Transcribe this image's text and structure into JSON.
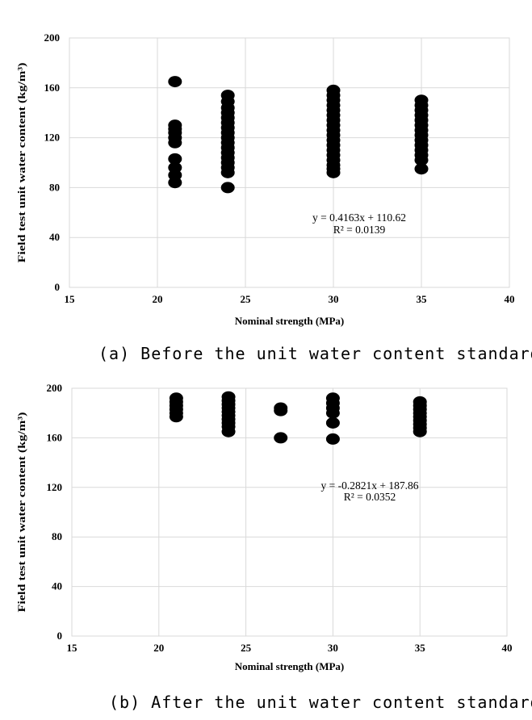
{
  "chart_data": [
    {
      "type": "scatter",
      "caption": "(a) Before the unit water content standard",
      "xlabel": "Nominal strength (MPa)",
      "ylabel": "Field test unit water content (kg/m³)",
      "xlim": [
        15,
        40
      ],
      "ylim": [
        0,
        200
      ],
      "xticks": [
        15,
        20,
        25,
        30,
        35,
        40
      ],
      "yticks": [
        0,
        40,
        80,
        120,
        160,
        200
      ],
      "grid": true,
      "trendline": {
        "equation": "y = 0.4163x + 110.62",
        "r2": "R² = 0.0139"
      },
      "series": [
        {
          "points": [
            [
              21,
              165
            ],
            [
              21,
              130
            ],
            [
              21,
              127
            ],
            [
              21,
              124
            ],
            [
              21,
              120
            ],
            [
              21,
              116
            ],
            [
              21,
              103
            ],
            [
              21,
              96
            ],
            [
              21,
              90
            ],
            [
              21,
              84
            ],
            [
              24,
              154
            ],
            [
              24,
              149
            ],
            [
              24,
              144
            ],
            [
              24,
              140
            ],
            [
              24,
              136
            ],
            [
              24,
              132
            ],
            [
              24,
              128
            ],
            [
              24,
              124
            ],
            [
              24,
              120
            ],
            [
              24,
              116
            ],
            [
              24,
              112
            ],
            [
              24,
              108
            ],
            [
              24,
              104
            ],
            [
              24,
              100
            ],
            [
              24,
              96
            ],
            [
              24,
              92
            ],
            [
              24,
              80
            ],
            [
              30,
              158
            ],
            [
              30,
              154
            ],
            [
              30,
              150
            ],
            [
              30,
              146
            ],
            [
              30,
              142
            ],
            [
              30,
              138
            ],
            [
              30,
              134
            ],
            [
              30,
              130
            ],
            [
              30,
              126
            ],
            [
              30,
              122
            ],
            [
              30,
              118
            ],
            [
              30,
              114
            ],
            [
              30,
              110
            ],
            [
              30,
              106
            ],
            [
              30,
              102
            ],
            [
              30,
              98
            ],
            [
              30,
              95
            ],
            [
              30,
              92
            ],
            [
              35,
              150
            ],
            [
              35,
              146
            ],
            [
              35,
              142
            ],
            [
              35,
              138
            ],
            [
              35,
              134
            ],
            [
              35,
              130
            ],
            [
              35,
              126
            ],
            [
              35,
              122
            ],
            [
              35,
              118
            ],
            [
              35,
              114
            ],
            [
              35,
              110
            ],
            [
              35,
              106
            ],
            [
              35,
              102
            ],
            [
              35,
              95
            ]
          ]
        }
      ]
    },
    {
      "type": "scatter",
      "caption": "(b) After the unit water content standard",
      "xlabel": "Nominal strength (MPa)",
      "ylabel": "Field test unit water content (kg/m³)",
      "xlim": [
        15,
        40
      ],
      "ylim": [
        0,
        200
      ],
      "xticks": [
        15,
        20,
        25,
        30,
        35,
        40
      ],
      "yticks": [
        0,
        40,
        80,
        120,
        160,
        200
      ],
      "grid": true,
      "trendline": {
        "equation": "y = -0.2821x + 187.86",
        "r2": "R² = 0.0352"
      },
      "series": [
        {
          "points": [
            [
              21,
              192
            ],
            [
              21,
              189
            ],
            [
              21,
              186
            ],
            [
              21,
              183
            ],
            [
              21,
              180
            ],
            [
              21,
              177
            ],
            [
              24,
              193
            ],
            [
              24,
              190
            ],
            [
              24,
              187
            ],
            [
              24,
              184
            ],
            [
              24,
              181
            ],
            [
              24,
              178
            ],
            [
              24,
              175
            ],
            [
              24,
              172
            ],
            [
              24,
              169
            ],
            [
              24,
              165
            ],
            [
              27,
              184
            ],
            [
              27,
              182
            ],
            [
              27,
              160
            ],
            [
              30,
              192
            ],
            [
              30,
              188
            ],
            [
              30,
              184
            ],
            [
              30,
              180
            ],
            [
              30,
              172
            ],
            [
              30,
              159
            ],
            [
              35,
              189
            ],
            [
              35,
              186
            ],
            [
              35,
              183
            ],
            [
              35,
              180
            ],
            [
              35,
              177
            ],
            [
              35,
              174
            ],
            [
              35,
              171
            ],
            [
              35,
              168
            ],
            [
              35,
              165
            ]
          ]
        }
      ]
    }
  ]
}
